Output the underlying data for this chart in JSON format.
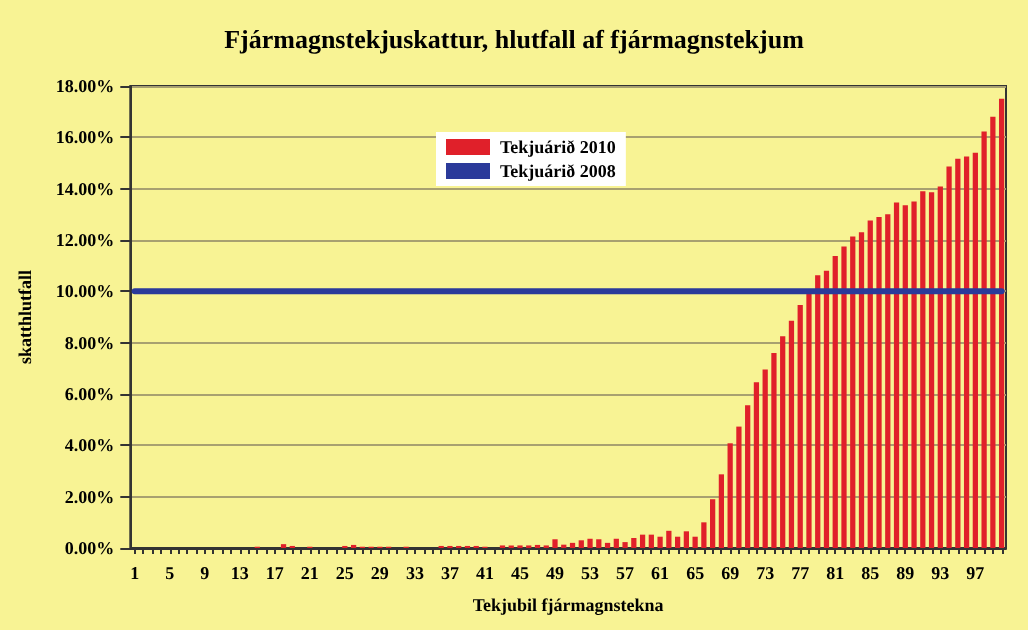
{
  "chart_data": {
    "type": "bar",
    "title": "Fjármagnstekjuskattur, hlutfall af fjármagnstekjum",
    "xlabel": "Tekjubil fjármagnstekna",
    "ylabel": "skatthlutfall",
    "categories": [
      "1",
      null,
      null,
      null,
      "5",
      null,
      null,
      null,
      "9",
      null,
      null,
      null,
      "13",
      null,
      null,
      null,
      "17",
      null,
      null,
      null,
      "21",
      null,
      null,
      null,
      "25",
      null,
      null,
      null,
      "29",
      null,
      null,
      null,
      "33",
      null,
      null,
      null,
      "37",
      null,
      null,
      null,
      "41",
      null,
      null,
      null,
      "45",
      null,
      null,
      null,
      "49",
      null,
      null,
      null,
      "53",
      null,
      null,
      null,
      "57",
      null,
      null,
      null,
      "61",
      null,
      null,
      null,
      "65",
      null,
      null,
      null,
      "69",
      null,
      null,
      null,
      "73",
      null,
      null,
      null,
      "77",
      null,
      null,
      null,
      "81",
      null,
      null,
      null,
      "85",
      null,
      null,
      null,
      "89",
      null,
      null,
      null,
      "93",
      null,
      null,
      null,
      "97",
      null,
      null,
      null
    ],
    "series": [
      {
        "name": "Tekjuárið 2010",
        "color": "#e0202a",
        "values": [
          0,
          0,
          0,
          0,
          0,
          0,
          0,
          0,
          0,
          0,
          0,
          0,
          0,
          0,
          0.05,
          0,
          0,
          0.15,
          0.08,
          0,
          0.05,
          0,
          0,
          0,
          0.08,
          0.12,
          0.05,
          0.05,
          0.05,
          0.05,
          0,
          0.05,
          0,
          0,
          0,
          0.08,
          0.08,
          0.08,
          0.08,
          0.08,
          0.05,
          0,
          0.1,
          0.1,
          0.1,
          0.1,
          0.12,
          0.1,
          0.34,
          0.13,
          0.2,
          0.3,
          0.36,
          0.34,
          0.2,
          0.36,
          0.23,
          0.39,
          0.52,
          0.52,
          0.44,
          0.67,
          0.44,
          0.65,
          0.44,
          1.0,
          1.9,
          2.87,
          4.08,
          4.73,
          5.56,
          6.46,
          6.95,
          7.6,
          8.25,
          8.85,
          9.47,
          9.9,
          10.63,
          10.8,
          11.38,
          11.75,
          12.14,
          12.3,
          12.76,
          12.9,
          13.0,
          13.46,
          13.35,
          13.5,
          13.9,
          13.86,
          14.08,
          14.86,
          15.17,
          15.25,
          15.4,
          16.23,
          16.8,
          17.5
        ]
      },
      {
        "name": "Tekjuárið 2008",
        "type": "line",
        "color": "#2b3a9a",
        "values": [
          10,
          10,
          10,
          10,
          10,
          10,
          10,
          10,
          10,
          10,
          10,
          10,
          10,
          10,
          10,
          10,
          10,
          10,
          10,
          10,
          10,
          10,
          10,
          10,
          10,
          10,
          10,
          10,
          10,
          10,
          10,
          10,
          10,
          10,
          10,
          10,
          10,
          10,
          10,
          10,
          10,
          10,
          10,
          10,
          10,
          10,
          10,
          10,
          10,
          10,
          10,
          10,
          10,
          10,
          10,
          10,
          10,
          10,
          10,
          10,
          10,
          10,
          10,
          10,
          10,
          10,
          10,
          10,
          10,
          10,
          10,
          10,
          10,
          10,
          10,
          10,
          10,
          10,
          10,
          10,
          10,
          10,
          10,
          10,
          10,
          10,
          10,
          10,
          10,
          10,
          10,
          10,
          10,
          10,
          10,
          10,
          10,
          10,
          10,
          10
        ]
      }
    ],
    "ylim": [
      0,
      18
    ],
    "yticks": [
      {
        "value": 0,
        "label": "0.00%"
      },
      {
        "value": 2,
        "label": "2.00%"
      },
      {
        "value": 4,
        "label": "4.00%"
      },
      {
        "value": 6,
        "label": "6.00%"
      },
      {
        "value": 8,
        "label": "8.00%"
      },
      {
        "value": 10,
        "label": "10.00%"
      },
      {
        "value": 12,
        "label": "12.00%"
      },
      {
        "value": 14,
        "label": "14.00%"
      },
      {
        "value": 16,
        "label": "16.00%"
      },
      {
        "value": 18,
        "label": "18.00%"
      }
    ],
    "grid": "y",
    "legend": "top",
    "marker": "none",
    "line_style": "solid"
  }
}
